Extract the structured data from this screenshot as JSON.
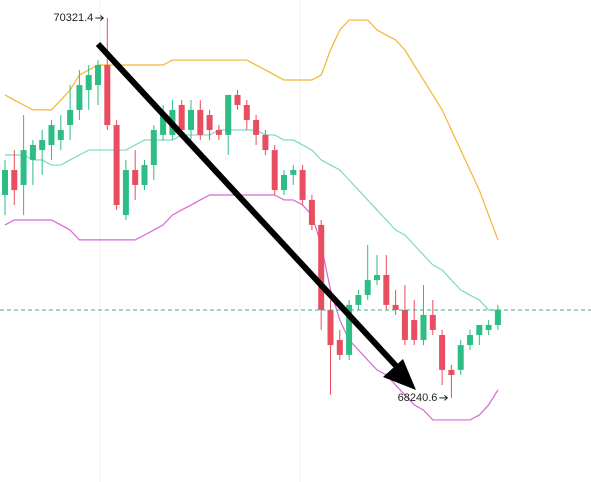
{
  "chart_data": {
    "type": "candlestick",
    "ylim": [
      67780,
      70420
    ],
    "up_color": "#2ebd85",
    "down_color": "#e84e5f",
    "last_price_line": true,
    "last_price_color": "#2ebd85",
    "open": [
      69352,
      69489,
      69407,
      69544,
      69598,
      69626,
      69653,
      69735,
      69818,
      69927,
      69954,
      70064,
      69735,
      69242,
      69489,
      69407,
      69516,
      69681,
      69681,
      69845,
      69708,
      69818,
      69790,
      69708,
      69681,
      69900,
      69845,
      69763,
      69681,
      69598,
      69379,
      69462,
      69489,
      69325,
      69188,
      68722,
      68558,
      68476,
      68750,
      68804,
      68886,
      68914,
      68750,
      68722,
      68667,
      68558,
      68695,
      68585,
      68394,
      68394,
      68530,
      68585,
      68613,
      68640
    ],
    "high": [
      69544,
      69598,
      69790,
      69653,
      69708,
      69763,
      69790,
      69954,
      70037,
      70064,
      70091,
      70321.4,
      69763,
      69544,
      69598,
      69544,
      69735,
      69845,
      69872,
      69872,
      69872,
      69872,
      69818,
      69735,
      69900,
      69927,
      69872,
      69790,
      69708,
      69626,
      69489,
      69516,
      69516,
      69352,
      69215,
      68777,
      68613,
      68777,
      68832,
      69078,
      69023,
      69023,
      68832,
      68859,
      68777,
      68859,
      68777,
      68613,
      68421,
      68558,
      68613,
      68640,
      68667,
      68750
    ],
    "low": [
      69242,
      69297,
      69242,
      69407,
      69462,
      69544,
      69598,
      69653,
      69763,
      69818,
      69845,
      69708,
      69270,
      69215,
      69325,
      69379,
      69434,
      69653,
      69653,
      69681,
      69653,
      69653,
      69653,
      69653,
      69571,
      69818,
      69708,
      69626,
      69571,
      69352,
      69352,
      69407,
      69297,
      69160,
      68613,
      68257,
      68448,
      68448,
      68722,
      68777,
      68859,
      68722,
      68695,
      68530,
      68530,
      68530,
      68585,
      68311,
      68240.6,
      68366,
      68503,
      68530,
      68585,
      68613
    ],
    "close": [
      69489,
      69379,
      69598,
      69626,
      69653,
      69735,
      69708,
      69818,
      69954,
      70009,
      70064,
      69735,
      69297,
      69489,
      69407,
      69516,
      69708,
      69790,
      69818,
      69708,
      69818,
      69681,
      69708,
      69681,
      69900,
      69845,
      69763,
      69681,
      69598,
      69379,
      69462,
      69489,
      69325,
      69188,
      68722,
      68530,
      68476,
      68750,
      68804,
      68886,
      68914,
      68750,
      68722,
      68558,
      68558,
      68695,
      68613,
      68394,
      68366,
      68530,
      68585,
      68640,
      68640,
      68722
    ],
    "bands": [
      {
        "color": "#f5b532",
        "values": [
          69900,
          69872,
          69845,
          69818,
          69818,
          69818,
          69872,
          69927,
          70009,
          70037,
          70064,
          70064,
          70064,
          70064,
          70064,
          70064,
          70064,
          70064,
          70091,
          70091,
          70091,
          70091,
          70091,
          70091,
          70091,
          70091,
          70091,
          70064,
          70037,
          70009,
          69982,
          69982,
          69982,
          69982,
          70009,
          70146,
          70256,
          70310,
          70310,
          70310,
          70256,
          70228,
          70201,
          70146,
          70064,
          69982,
          69900,
          69818,
          69708,
          69598,
          69489,
          69379,
          69242,
          69106
        ]
      },
      {
        "color": "#7dd9c0",
        "values": [
          69571,
          69571,
          69571,
          69544,
          69544,
          69516,
          69516,
          69544,
          69571,
          69598,
          69598,
          69598,
          69598,
          69598,
          69626,
          69653,
          69653,
          69653,
          69653,
          69681,
          69681,
          69681,
          69681,
          69708,
          69708,
          69708,
          69708,
          69708,
          69681,
          69681,
          69653,
          69653,
          69626,
          69598,
          69544,
          69516,
          69489,
          69434,
          69379,
          69325,
          69270,
          69215,
          69160,
          69133,
          69078,
          69023,
          68969,
          68941,
          68886,
          68832,
          68804,
          68777,
          68722,
          68722
        ]
      },
      {
        "color": "#d966d6",
        "values": [
          69188,
          69215,
          69215,
          69215,
          69215,
          69215,
          69188,
          69160,
          69106,
          69106,
          69106,
          69106,
          69106,
          69106,
          69106,
          69133,
          69160,
          69188,
          69242,
          69270,
          69297,
          69325,
          69352,
          69352,
          69352,
          69352,
          69352,
          69352,
          69352,
          69352,
          69325,
          69325,
          69297,
          69242,
          69078,
          68832,
          68667,
          68558,
          68503,
          68448,
          68394,
          68366,
          68311,
          68257,
          68202,
          68174,
          68120,
          68120,
          68120,
          68120,
          68120,
          68147,
          68202,
          68284
        ]
      }
    ]
  }
}
